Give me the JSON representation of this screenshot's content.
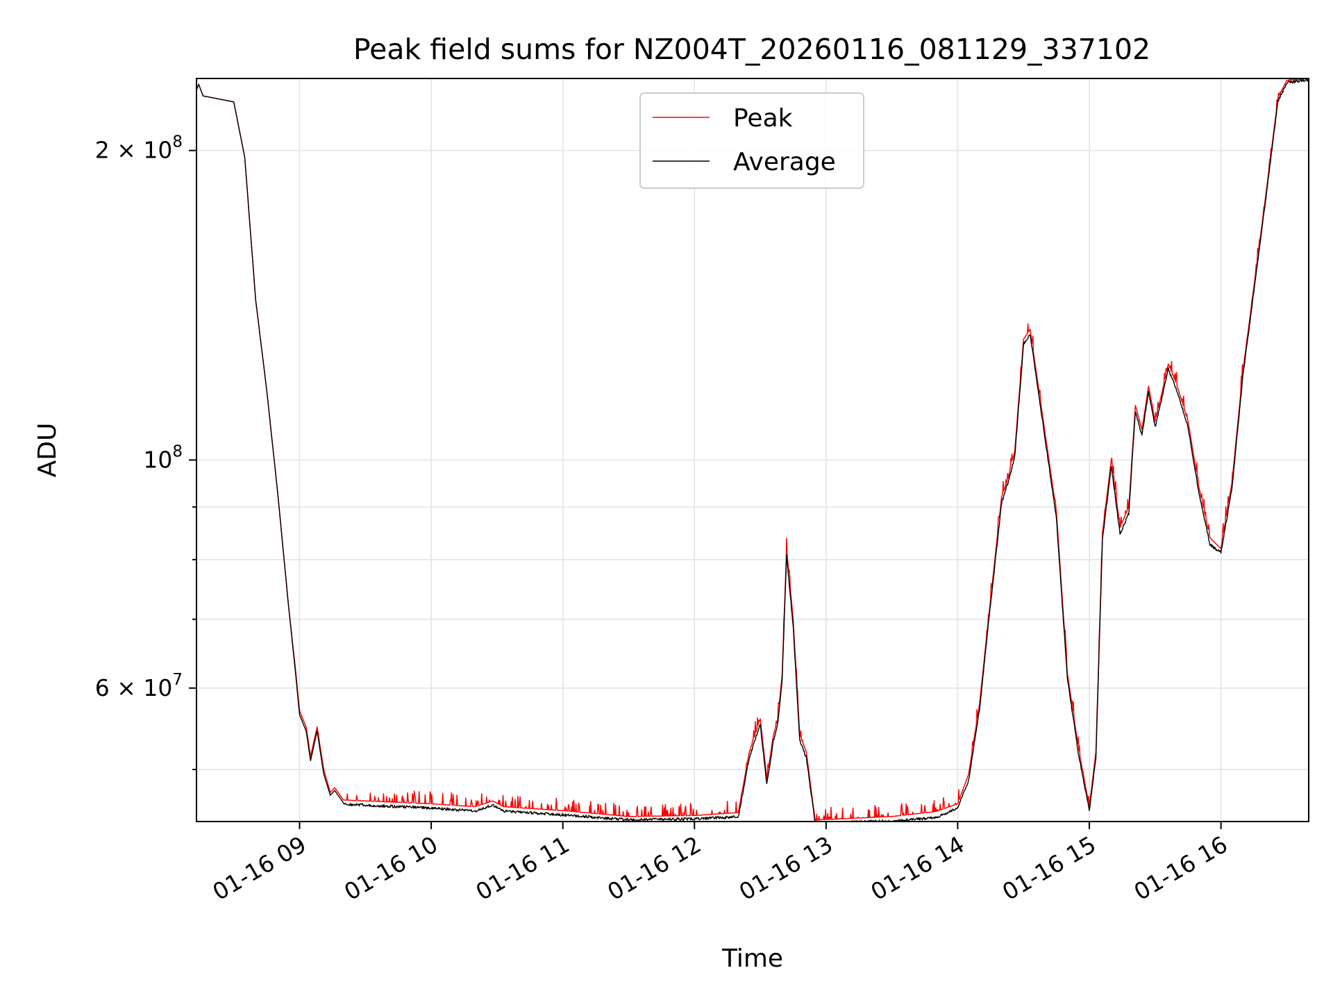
{
  "chart_data": {
    "type": "line",
    "title": "Peak field sums for NZ004T_20260116_081129_337102",
    "xlabel": "Time",
    "ylabel": "ADU",
    "y_scale": "log",
    "xlim": [
      "01-16 08:13",
      "01-16 16:40"
    ],
    "ylim": [
      44500000,
      235000000
    ],
    "x_ticks": [
      "01-16 09",
      "01-16 10",
      "01-16 11",
      "01-16 12",
      "01-16 13",
      "01-16 14",
      "01-16 15",
      "01-16 16"
    ],
    "x_tick_values": [
      "01-16 09:00",
      "01-16 10:00",
      "01-16 11:00",
      "01-16 12:00",
      "01-16 13:00",
      "01-16 14:00",
      "01-16 15:00",
      "01-16 16:00"
    ],
    "y_ticks_major": [
      {
        "value": 200000000,
        "mantissa": "2",
        "base": "10",
        "exp": "8"
      },
      {
        "value": 100000000,
        "mantissa": "",
        "base": "10",
        "exp": "8"
      },
      {
        "value": 60000000,
        "mantissa": "6",
        "base": "10",
        "exp": "7"
      }
    ],
    "y_ticks_minor": [
      50000000,
      70000000,
      80000000,
      90000000
    ],
    "grid": true,
    "legend": {
      "position": "upper center"
    },
    "series": [
      {
        "name": "Peak",
        "color": "#ff0000",
        "noise": "high",
        "x": [
          "01-16 08:13",
          "01-16 08:14",
          "01-16 08:16",
          "01-16 08:30",
          "01-16 08:35",
          "01-16 08:40",
          "01-16 08:45",
          "01-16 08:50",
          "01-16 08:55",
          "01-16 08:58",
          "01-16 09:00",
          "01-16 09:03",
          "01-16 09:05",
          "01-16 09:08",
          "01-16 09:11",
          "01-16 09:14",
          "01-16 09:16",
          "01-16 09:20",
          "01-16 09:30",
          "01-16 10:00",
          "01-16 10:20",
          "01-16 10:28",
          "01-16 10:33",
          "01-16 11:00",
          "01-16 11:30",
          "01-16 12:00",
          "01-16 12:20",
          "01-16 12:25",
          "01-16 12:30",
          "01-16 12:33",
          "01-16 12:36",
          "01-16 12:38",
          "01-16 12:40",
          "01-16 12:42",
          "01-16 12:45",
          "01-16 12:48",
          "01-16 12:51",
          "01-16 12:55",
          "01-16 12:58",
          "01-16 13:00",
          "01-16 13:30",
          "01-16 13:50",
          "01-16 14:00",
          "01-16 14:05",
          "01-16 14:10",
          "01-16 14:14",
          "01-16 14:20",
          "01-16 14:23",
          "01-16 14:26",
          "01-16 14:30",
          "01-16 14:33",
          "01-16 14:37",
          "01-16 14:45",
          "01-16 14:50",
          "01-16 14:55",
          "01-16 15:00",
          "01-16 15:03",
          "01-16 15:06",
          "01-16 15:10",
          "01-16 15:14",
          "01-16 15:18",
          "01-16 15:21",
          "01-16 15:24",
          "01-16 15:27",
          "01-16 15:30",
          "01-16 15:33",
          "01-16 15:36",
          "01-16 15:40",
          "01-16 15:45",
          "01-16 15:50",
          "01-16 15:55",
          "01-16 16:00",
          "01-16 16:05",
          "01-16 16:10",
          "01-16 16:20",
          "01-16 16:26",
          "01-16 16:30",
          "01-16 16:40"
        ],
        "y": [
          229000000,
          232000000,
          226000000,
          223000000,
          197000000,
          143000000,
          117000000,
          93000000,
          72000000,
          63000000,
          57000000,
          55000000,
          51500000,
          55000000,
          50000000,
          47500000,
          48000000,
          46700000,
          46600000,
          46300000,
          46000000,
          46600000,
          46000000,
          45600000,
          45000000,
          45100000,
          45400000,
          52000000,
          56000000,
          49000000,
          54000000,
          56000000,
          62000000,
          82000000,
          70000000,
          54000000,
          52000000,
          44600000,
          44700000,
          44700000,
          45000000,
          45500000,
          46300000,
          49500000,
          58000000,
          70000000,
          92000000,
          96000000,
          102000000,
          131000000,
          134000000,
          117000000,
          89000000,
          62000000,
          52500000,
          46000000,
          52000000,
          85000000,
          100000000,
          86000000,
          90000000,
          113000000,
          107000000,
          118000000,
          109000000,
          116000000,
          124000000,
          118000000,
          109000000,
          94000000,
          84000000,
          82000000,
          95000000,
          122000000,
          178000000,
          225000000,
          234000000,
          235000000
        ]
      },
      {
        "name": "Average",
        "color": "#000000",
        "noise": "low",
        "x": [
          "01-16 08:13",
          "01-16 08:14",
          "01-16 08:16",
          "01-16 08:30",
          "01-16 08:35",
          "01-16 08:40",
          "01-16 08:45",
          "01-16 08:50",
          "01-16 08:55",
          "01-16 08:58",
          "01-16 09:00",
          "01-16 09:03",
          "01-16 09:05",
          "01-16 09:08",
          "01-16 09:11",
          "01-16 09:14",
          "01-16 09:16",
          "01-16 09:20",
          "01-16 09:30",
          "01-16 10:00",
          "01-16 10:20",
          "01-16 10:28",
          "01-16 10:33",
          "01-16 11:00",
          "01-16 11:30",
          "01-16 12:00",
          "01-16 12:20",
          "01-16 12:25",
          "01-16 12:30",
          "01-16 12:33",
          "01-16 12:36",
          "01-16 12:38",
          "01-16 12:40",
          "01-16 12:42",
          "01-16 12:45",
          "01-16 12:48",
          "01-16 12:51",
          "01-16 12:55",
          "01-16 12:58",
          "01-16 13:00",
          "01-16 13:30",
          "01-16 13:50",
          "01-16 14:00",
          "01-16 14:05",
          "01-16 14:10",
          "01-16 14:14",
          "01-16 14:20",
          "01-16 14:23",
          "01-16 14:26",
          "01-16 14:30",
          "01-16 14:33",
          "01-16 14:37",
          "01-16 14:45",
          "01-16 14:50",
          "01-16 14:55",
          "01-16 15:00",
          "01-16 15:03",
          "01-16 15:06",
          "01-16 15:10",
          "01-16 15:14",
          "01-16 15:18",
          "01-16 15:21",
          "01-16 15:24",
          "01-16 15:27",
          "01-16 15:30",
          "01-16 15:33",
          "01-16 15:36",
          "01-16 15:40",
          "01-16 15:45",
          "01-16 15:50",
          "01-16 15:55",
          "01-16 16:00",
          "01-16 16:05",
          "01-16 16:10",
          "01-16 16:20",
          "01-16 16:26",
          "01-16 16:30",
          "01-16 16:40"
        ],
        "y": [
          229000000,
          232000000,
          226000000,
          223000000,
          197000000,
          143000000,
          117000000,
          93000000,
          72000000,
          62500000,
          56500000,
          54500000,
          51000000,
          54500000,
          49500000,
          47200000,
          47700000,
          46400000,
          46300000,
          46000000,
          45700000,
          46300000,
          45700000,
          45300000,
          44800000,
          44900000,
          45100000,
          51500000,
          55500000,
          48500000,
          53500000,
          55500000,
          61500000,
          81000000,
          69000000,
          53500000,
          51500000,
          44500000,
          44500000,
          44500000,
          44700000,
          45000000,
          46000000,
          49000000,
          57500000,
          69500000,
          91000000,
          95500000,
          101000000,
          130000000,
          133000000,
          116000000,
          88000000,
          61500000,
          52000000,
          45700000,
          51500000,
          84000000,
          99000000,
          85000000,
          89000000,
          112000000,
          106000000,
          117000000,
          108000000,
          115000000,
          123000000,
          117000000,
          108000000,
          93000000,
          83000000,
          81500000,
          94000000,
          121000000,
          177000000,
          224000000,
          233500000,
          235000000
        ]
      }
    ]
  }
}
